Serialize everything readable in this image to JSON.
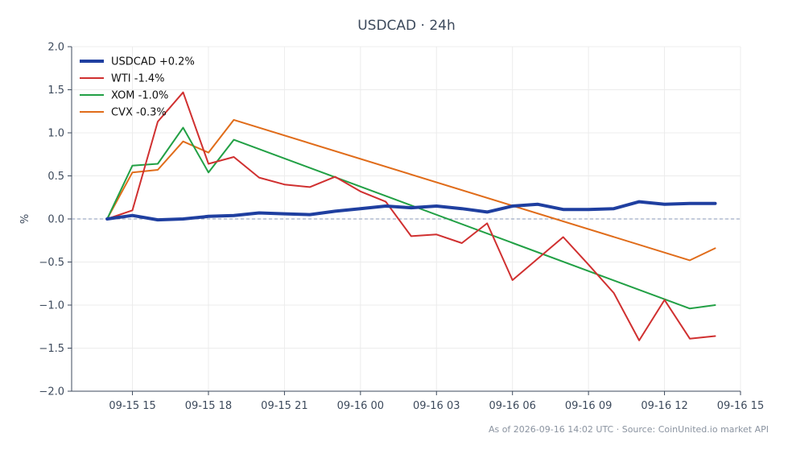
{
  "chart_data": {
    "type": "line",
    "title": "USDCAD · 24h",
    "ylabel": "%",
    "xlabel": "",
    "ylim": [
      -2.0,
      2.0
    ],
    "yticks": [
      -2.0,
      -1.5,
      -1.0,
      -0.5,
      0.0,
      0.5,
      1.0,
      1.5,
      2.0
    ],
    "ytick_labels": [
      "−2.0",
      "−1.5",
      "−1.0",
      "−0.5",
      "0.0",
      "0.5",
      "1.0",
      "1.5",
      "2.0"
    ],
    "xlim_hours": [
      -1.4,
      25.0
    ],
    "xticks_hours": [
      1,
      4,
      7,
      10,
      13,
      16,
      19,
      22,
      25
    ],
    "xtick_labels": [
      "09-15 15",
      "09-15 18",
      "09-15 21",
      "09-16 00",
      "09-16 03",
      "09-16 06",
      "09-16 09",
      "09-16 12",
      "09-16 15"
    ],
    "x_hours_note_start": "09-15 14",
    "zero_line": true,
    "grid": true,
    "legend_position": "top-left",
    "series": [
      {
        "name": "USDCAD +0.2%",
        "color": "#1f3fa0",
        "width": 4,
        "x": [
          0,
          1,
          2,
          3,
          4,
          5,
          6,
          7,
          8,
          9,
          10,
          11,
          12,
          13,
          14,
          15,
          16,
          17,
          18,
          19,
          20,
          21,
          22,
          23,
          24
        ],
        "y": [
          0.0,
          0.04,
          -0.01,
          0.0,
          0.03,
          0.04,
          0.07,
          0.06,
          0.05,
          0.09,
          0.12,
          0.15,
          0.13,
          0.15,
          0.12,
          0.08,
          0.15,
          0.17,
          0.11,
          0.11,
          0.12,
          0.2,
          0.17,
          0.18,
          0.18
        ]
      },
      {
        "name": "WTI -1.4%",
        "color": "#d03030",
        "width": 2,
        "x": [
          0,
          1,
          2,
          3,
          4,
          5,
          6,
          7,
          8,
          9,
          10,
          11,
          12,
          13,
          14,
          15,
          16,
          17,
          18,
          19,
          20,
          21,
          22,
          23,
          24
        ],
        "y": [
          0.0,
          0.1,
          1.13,
          1.47,
          0.64,
          0.72,
          0.48,
          0.4,
          0.37,
          0.49,
          0.32,
          0.2,
          -0.2,
          -0.18,
          -0.28,
          -0.05,
          -0.71,
          -0.46,
          -0.21,
          -0.53,
          -0.86,
          -1.41,
          -0.94,
          -1.39,
          -1.36
        ]
      },
      {
        "name": "XOM -1.0%",
        "color": "#22a045",
        "width": 2,
        "x": [
          0,
          1,
          2,
          3,
          4,
          5,
          23,
          24
        ],
        "y": [
          0.0,
          0.62,
          0.64,
          1.06,
          0.54,
          0.92,
          -1.04,
          -1.0
        ]
      },
      {
        "name": "CVX -0.3%",
        "color": "#e06c1a",
        "width": 2,
        "x": [
          0,
          1,
          2,
          3,
          4,
          5,
          23,
          24
        ],
        "y": [
          0.0,
          0.54,
          0.57,
          0.9,
          0.77,
          1.15,
          -0.48,
          -0.34
        ]
      }
    ]
  },
  "footer": "As of 2026-09-16 14:02 UTC · Source: CoinUnited.io market API"
}
